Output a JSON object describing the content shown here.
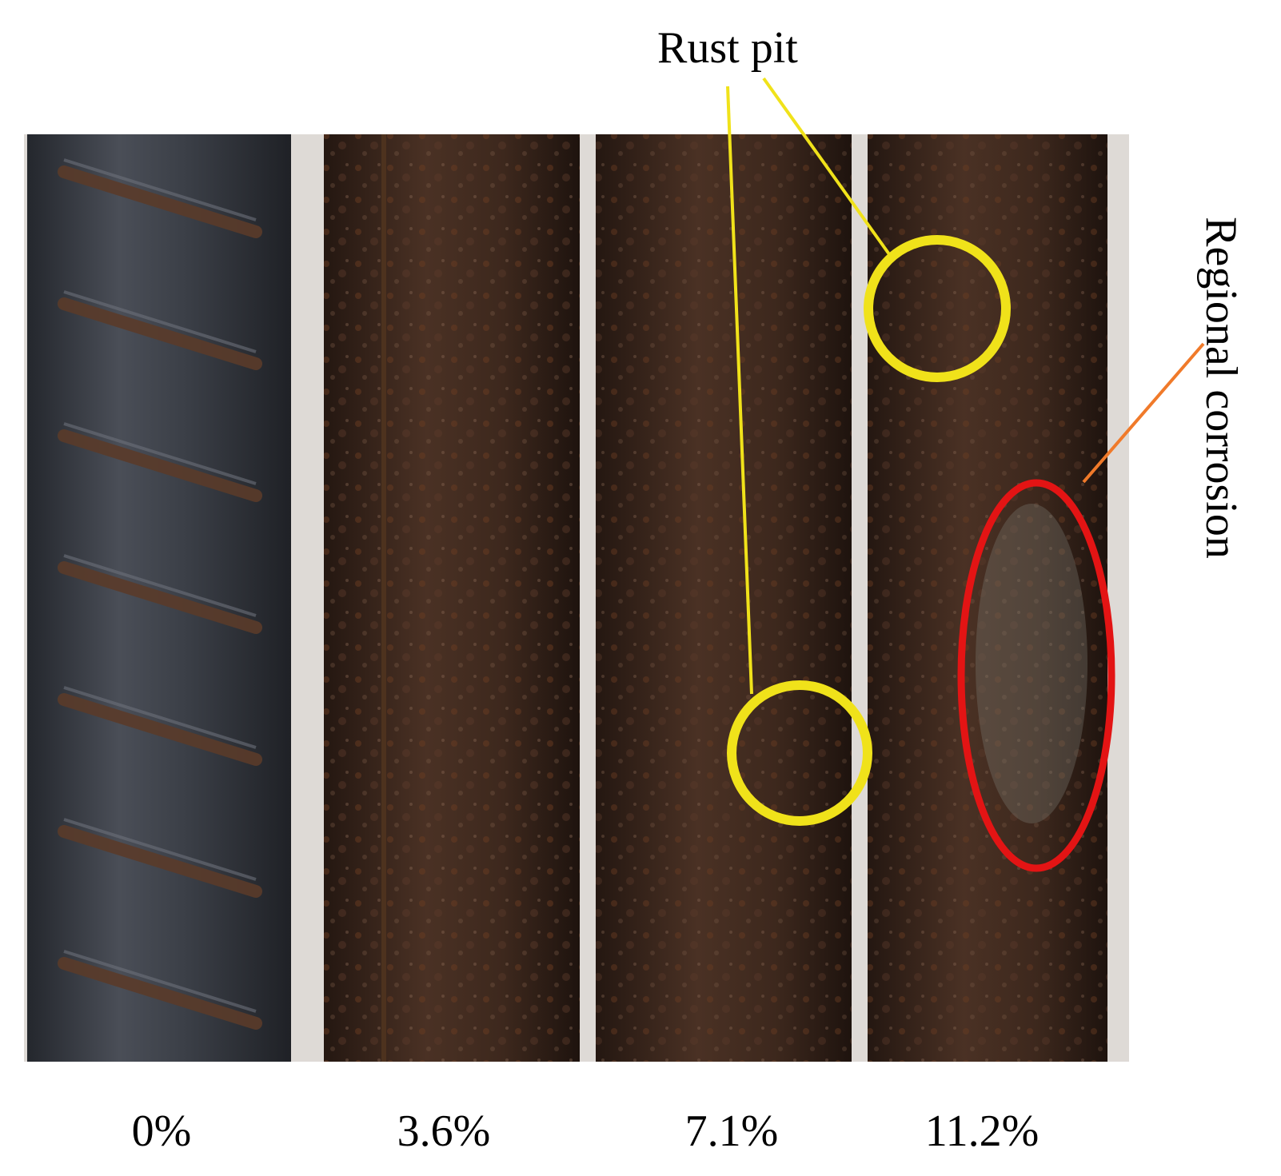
{
  "figure": {
    "annotations": {
      "rust_pit": "Rust pit",
      "regional_corrosion": "Regional corrosion"
    },
    "specimens": [
      {
        "corrosion_rate": "0%",
        "color": "#3b3e45"
      },
      {
        "corrosion_rate": "3.6%",
        "color": "#3a251b"
      },
      {
        "corrosion_rate": "7.1%",
        "color": "#3a2a21"
      },
      {
        "corrosion_rate": "11.2%",
        "color": "#3b2820"
      }
    ],
    "colors": {
      "rust_pit_marker": "#f0e21a",
      "regional_corrosion_marker": "#e31414",
      "regional_leader": "#f07a2a",
      "background_gap": "#dedad6"
    }
  }
}
